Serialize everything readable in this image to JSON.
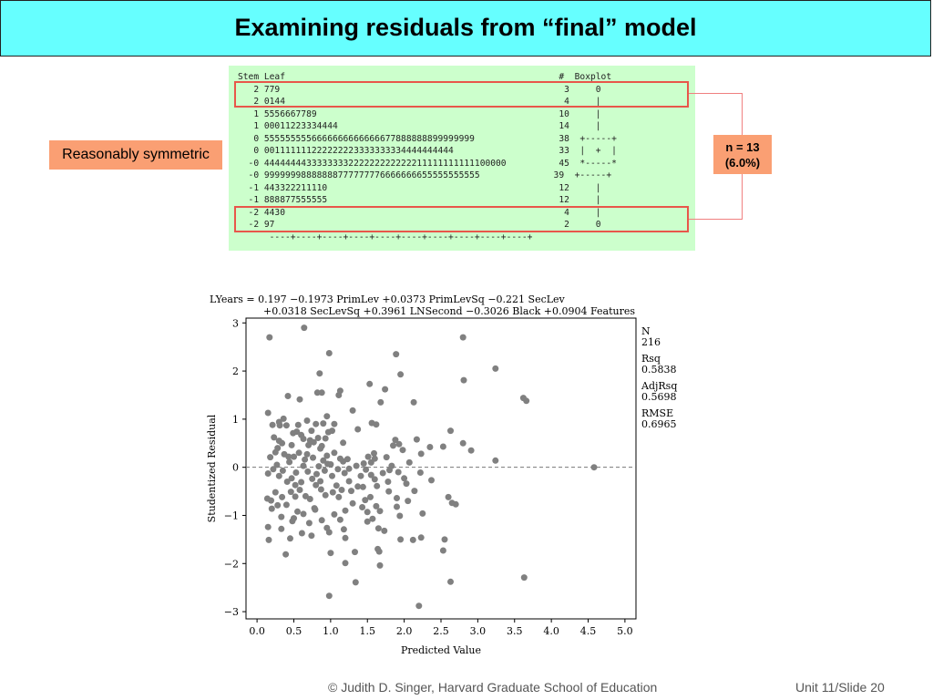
{
  "slide": {
    "title": "Examining residuals from “final” model",
    "footer_credit": "© Judith D. Singer, Harvard Graduate School of Education",
    "footer_slide": "Unit 11/Slide 20"
  },
  "stem_leaf": {
    "header": "Stem Leaf                                                    #  Boxplot",
    "rows": [
      "   2 779                                                      3     0",
      "   2 0144                                                     4     |",
      "   1 5556667789                                              10     |",
      "   1 00011223334444                                          14     |",
      "   0 5555555556666666666666677888888899999999                38  +-----+",
      "   0 001111111222222223333333334444444444                    33  |  +  |",
      "  -0 4444444433333333222222222222211111111111100000          45  *-----*",
      "  -0 99999998888888777777776666666655555555555              39  +-----+",
      "  -1 443322211110                                            12     |",
      "  -1 888877555555                                            12     |",
      "  -2 4430                                                     4     |",
      "  -2 97                                                       2     0",
      "      ----+----+----+----+----+----+----+----+----+----+"
    ]
  },
  "callouts": {
    "symmetric": "Reasonably symmetric",
    "n_line1": "n = 13",
    "n_line2": "(6.0%)"
  },
  "chart_data": {
    "type": "scatter",
    "equation_line1": "LYears = 0.197 −0.1973 PrimLev +0.0373 PrimLevSq −0.221 SecLev",
    "equation_line2": "+0.0318 SecLevSq +0.3961 LNSecond −0.3026 Black +0.0904 Features",
    "xlabel": "Predicted Value",
    "ylabel": "Studentized Residual",
    "xlim": [
      -0.15,
      5.15
    ],
    "ylim": [
      -3.15,
      3.1
    ],
    "xticks": [
      "0.0",
      "0.5",
      "1.0",
      "1.5",
      "2.0",
      "2.5",
      "3.0",
      "3.5",
      "4.0",
      "4.5",
      "5.0"
    ],
    "yticks": [
      "3",
      "2",
      "1",
      "0",
      "−1",
      "−2",
      "−3"
    ],
    "reference_line_y": 0,
    "stats": {
      "n_label": "N",
      "n_value": "216",
      "rsq_label": "Rsq",
      "rsq_value": "0.5838",
      "adjrsq_label": "AdjRsq",
      "adjrsq_value": "0.5698",
      "rmse_label": "RMSE",
      "rmse_value": "0.6965"
    },
    "point_color": "#808080",
    "points": [
      [
        0.64,
        2.9
      ],
      [
        0.17,
        2.7
      ],
      [
        2.8,
        2.7
      ],
      [
        0.98,
        2.37
      ],
      [
        1.89,
        2.35
      ],
      [
        0.85,
        1.95
      ],
      [
        1.95,
        1.93
      ],
      [
        3.24,
        2.05
      ],
      [
        2.81,
        1.81
      ],
      [
        3.62,
        1.44
      ],
      [
        3.66,
        1.38
      ],
      [
        1.53,
        1.73
      ],
      [
        1.74,
        1.62
      ],
      [
        1.13,
        1.59
      ],
      [
        1.11,
        1.5
      ],
      [
        0.82,
        1.55
      ],
      [
        0.88,
        1.55
      ],
      [
        1.68,
        1.35
      ],
      [
        2.13,
        1.35
      ],
      [
        0.42,
        1.48
      ],
      [
        0.58,
        1.41
      ],
      [
        0.15,
        1.13
      ],
      [
        1.3,
        1.18
      ],
      [
        0.21,
        0.88
      ],
      [
        0.31,
        0.87
      ],
      [
        0.36,
        1.01
      ],
      [
        0.4,
        0.87
      ],
      [
        0.49,
        0.71
      ],
      [
        0.56,
        0.88
      ],
      [
        0.68,
        0.97
      ],
      [
        0.8,
        0.9
      ],
      [
        0.9,
        0.91
      ],
      [
        0.95,
        1.06
      ],
      [
        1.05,
        0.9
      ],
      [
        1.56,
        0.92
      ],
      [
        1.62,
        0.89
      ],
      [
        2.63,
        0.76
      ],
      [
        0.23,
        0.62
      ],
      [
        0.3,
        0.55
      ],
      [
        0.34,
        0.5
      ],
      [
        0.47,
        0.46
      ],
      [
        0.54,
        0.74
      ],
      [
        0.6,
        0.67
      ],
      [
        0.72,
        0.56
      ],
      [
        0.77,
        0.52
      ],
      [
        0.83,
        0.61
      ],
      [
        0.93,
        0.6
      ],
      [
        0.97,
        0.73
      ],
      [
        1.02,
        0.76
      ],
      [
        1.88,
        0.57
      ],
      [
        1.93,
        0.48
      ],
      [
        1.98,
        0.36
      ],
      [
        2.17,
        0.58
      ],
      [
        2.35,
        0.42
      ],
      [
        2.53,
        0.43
      ],
      [
        2.8,
        0.5
      ],
      [
        2.91,
        0.35
      ],
      [
        0.18,
        0.21
      ],
      [
        0.25,
        0.31
      ],
      [
        0.28,
        0.4
      ],
      [
        0.37,
        0.27
      ],
      [
        0.44,
        0.11
      ],
      [
        0.5,
        0.22
      ],
      [
        0.57,
        0.3
      ],
      [
        0.65,
        0.16
      ],
      [
        0.7,
        0.46
      ],
      [
        0.76,
        0.2
      ],
      [
        0.86,
        0.39
      ],
      [
        0.9,
        0.14
      ],
      [
        1.0,
        0.06
      ],
      [
        1.05,
        0.3
      ],
      [
        1.13,
        0.18
      ],
      [
        1.17,
        0.12
      ],
      [
        1.23,
        0.17
      ],
      [
        1.45,
        0.08
      ],
      [
        1.51,
        0.22
      ],
      [
        1.59,
        0.29
      ],
      [
        1.76,
        0.21
      ],
      [
        1.83,
        0.03
      ],
      [
        2.23,
        0.28
      ],
      [
        3.24,
        0.14
      ],
      [
        4.58,
        0.0
      ],
      [
        0.15,
        -0.13
      ],
      [
        0.22,
        -0.04
      ],
      [
        0.3,
        -0.18
      ],
      [
        0.35,
        -0.07
      ],
      [
        0.41,
        -0.3
      ],
      [
        0.47,
        -0.23
      ],
      [
        0.53,
        -0.11
      ],
      [
        0.6,
        -0.31
      ],
      [
        0.63,
        0.03
      ],
      [
        0.69,
        -0.09
      ],
      [
        0.75,
        -0.24
      ],
      [
        0.81,
        -0.14
      ],
      [
        0.86,
        -0.29
      ],
      [
        0.92,
        -0.07
      ],
      [
        0.96,
        0.07
      ],
      [
        1.02,
        -0.18
      ],
      [
        1.1,
        -0.04
      ],
      [
        1.19,
        -0.12
      ],
      [
        1.25,
        -0.29
      ],
      [
        1.41,
        -0.18
      ],
      [
        1.48,
        -0.05
      ],
      [
        1.55,
        -0.16
      ],
      [
        1.6,
        -0.25
      ],
      [
        1.71,
        -0.12
      ],
      [
        1.8,
        -0.06
      ],
      [
        2.0,
        -0.23
      ],
      [
        2.22,
        -0.11
      ],
      [
        2.37,
        -0.27
      ],
      [
        0.14,
        -0.65
      ],
      [
        0.19,
        -0.69
      ],
      [
        0.25,
        -0.52
      ],
      [
        0.28,
        -0.79
      ],
      [
        0.34,
        -0.62
      ],
      [
        0.4,
        -0.78
      ],
      [
        0.46,
        -0.51
      ],
      [
        0.52,
        -0.61
      ],
      [
        0.58,
        -0.47
      ],
      [
        0.66,
        -0.6
      ],
      [
        0.72,
        -0.66
      ],
      [
        0.8,
        -0.37
      ],
      [
        0.87,
        -0.46
      ],
      [
        0.93,
        -0.58
      ],
      [
        1.03,
        -0.52
      ],
      [
        1.08,
        -0.38
      ],
      [
        1.15,
        -0.47
      ],
      [
        1.28,
        -0.49
      ],
      [
        1.37,
        -0.4
      ],
      [
        1.47,
        -0.68
      ],
      [
        1.54,
        -0.62
      ],
      [
        1.63,
        -0.39
      ],
      [
        1.79,
        -0.5
      ],
      [
        1.9,
        -0.64
      ],
      [
        2.05,
        -0.7
      ],
      [
        2.14,
        -0.49
      ],
      [
        2.6,
        -0.62
      ],
      [
        2.7,
        -0.77
      ],
      [
        2.65,
        -0.74
      ],
      [
        0.2,
        -0.86
      ],
      [
        0.33,
        -1.03
      ],
      [
        0.48,
        -1.12
      ],
      [
        0.5,
        -1.06
      ],
      [
        0.55,
        -0.92
      ],
      [
        0.63,
        -0.97
      ],
      [
        0.71,
        -1.16
      ],
      [
        0.79,
        -0.88
      ],
      [
        0.88,
        -1.1
      ],
      [
        0.95,
        -1.26
      ],
      [
        1.05,
        -0.98
      ],
      [
        1.13,
        -1.09
      ],
      [
        1.2,
        -0.9
      ],
      [
        1.43,
        -0.83
      ],
      [
        1.5,
        -0.93
      ],
      [
        1.57,
        -1.07
      ],
      [
        1.67,
        -0.91
      ],
      [
        1.94,
        -1.01
      ],
      [
        2.25,
        -0.96
      ],
      [
        0.15,
        -1.24
      ],
      [
        0.33,
        -1.28
      ],
      [
        0.45,
        -1.48
      ],
      [
        0.61,
        -1.37
      ],
      [
        0.74,
        -1.42
      ],
      [
        0.98,
        -1.35
      ],
      [
        1.18,
        -1.29
      ],
      [
        1.2,
        -1.47
      ],
      [
        1.65,
        -1.27
      ],
      [
        0.16,
        -1.51
      ],
      [
        0.39,
        -1.81
      ],
      [
        1.0,
        -1.78
      ],
      [
        1.33,
        -1.76
      ],
      [
        1.64,
        -1.7
      ],
      [
        1.66,
        -1.75
      ],
      [
        1.95,
        -1.5
      ],
      [
        2.12,
        -1.51
      ],
      [
        2.23,
        -1.46
      ],
      [
        2.55,
        -1.5
      ],
      [
        2.53,
        -1.73
      ],
      [
        1.67,
        -2.04
      ],
      [
        1.34,
        -2.39
      ],
      [
        2.63,
        -2.38
      ],
      [
        3.63,
        -2.29
      ],
      [
        0.98,
        -2.67
      ],
      [
        2.2,
        -2.88
      ],
      [
        1.2,
        -1.99
      ],
      [
        0.78,
        -0.85
      ],
      [
        1.3,
        -0.75
      ],
      [
        1.5,
        -1.13
      ],
      [
        1.73,
        -1.32
      ],
      [
        1.9,
        -0.82
      ],
      [
        2.03,
        -0.34
      ],
      [
        0.27,
        0.05
      ],
      [
        0.95,
        0.24
      ],
      [
        1.35,
        0.03
      ],
      [
        1.25,
        -0.03
      ],
      [
        1.85,
        0.45
      ],
      [
        1.78,
        -0.3
      ],
      [
        0.52,
        -0.37
      ],
      [
        0.43,
        0.22
      ],
      [
        0.68,
        0.27
      ],
      [
        0.84,
        0.02
      ],
      [
        1.11,
        -0.62
      ],
      [
        1.44,
        -0.41
      ],
      [
        1.62,
        -0.81
      ],
      [
        1.92,
        -0.1
      ],
      [
        2.07,
        0.1
      ],
      [
        1.37,
        0.79
      ],
      [
        0.3,
        0.94
      ],
      [
        0.63,
        0.59
      ],
      [
        0.74,
        0.76
      ],
      [
        0.88,
        0.44
      ],
      [
        1.17,
        0.51
      ],
      [
        1.55,
        0.1
      ],
      [
        1.6,
        0.18
      ]
    ]
  }
}
